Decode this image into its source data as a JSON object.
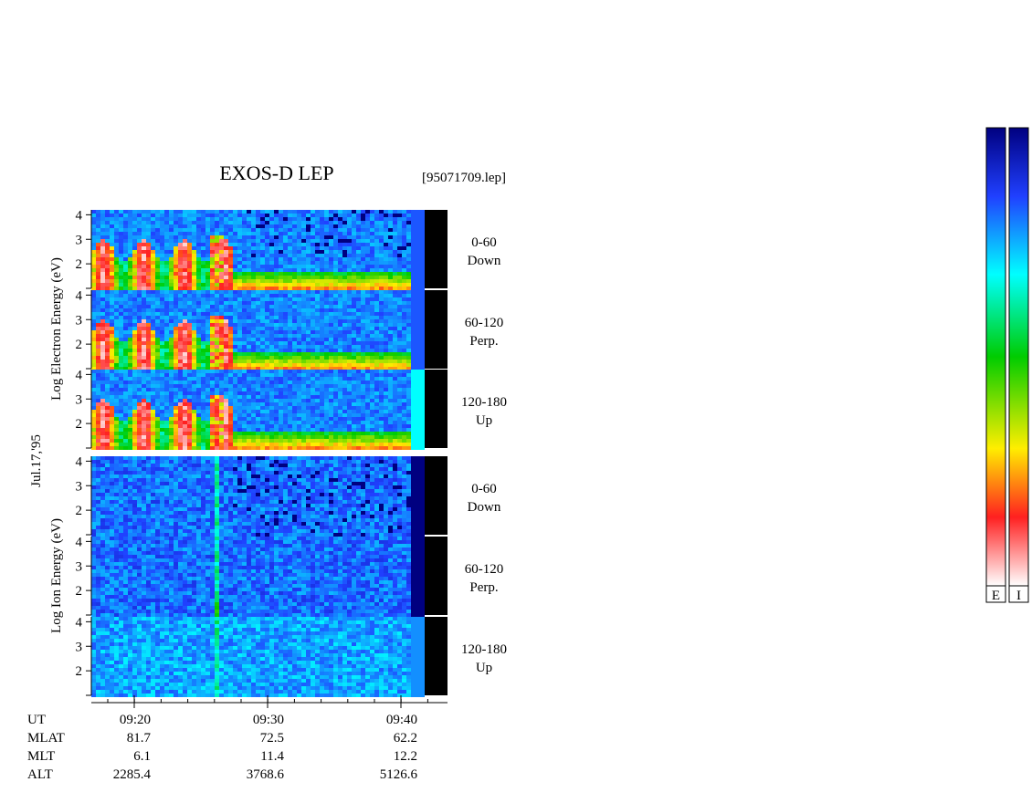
{
  "title": "EXOS-D LEP",
  "file": "[95071709.lep]",
  "date": "Jul.17,'95",
  "groups": [
    {
      "ylabel": "Log Electron Energy (eV)",
      "panels": [
        {
          "angle": "0-60",
          "direction": "Down"
        },
        {
          "angle": "60-120",
          "direction": "Perp."
        },
        {
          "angle": "120-180",
          "direction": "Up"
        }
      ]
    },
    {
      "ylabel": "Log Ion Energy (eV)",
      "panels": [
        {
          "angle": "0-60",
          "direction": "Down"
        },
        {
          "angle": "60-120",
          "direction": "Perp."
        },
        {
          "angle": "120-180",
          "direction": "Up"
        }
      ]
    }
  ],
  "yticks": [
    2,
    3,
    4
  ],
  "ylim": [
    1,
    4.2
  ],
  "xticks": [
    "09:20",
    "09:30",
    "09:40"
  ],
  "ephemeris": [
    {
      "name": "UT",
      "values": [
        "09:20",
        "09:30",
        "09:40"
      ]
    },
    {
      "name": "MLAT",
      "values": [
        81.7,
        72.5,
        62.2
      ]
    },
    {
      "name": "MLT",
      "values": [
        6.1,
        11.4,
        12.2
      ]
    },
    {
      "name": "ALT",
      "values": [
        2285.4,
        3768.6,
        5126.6
      ]
    }
  ],
  "colorbars": [
    "E",
    "I"
  ]
}
